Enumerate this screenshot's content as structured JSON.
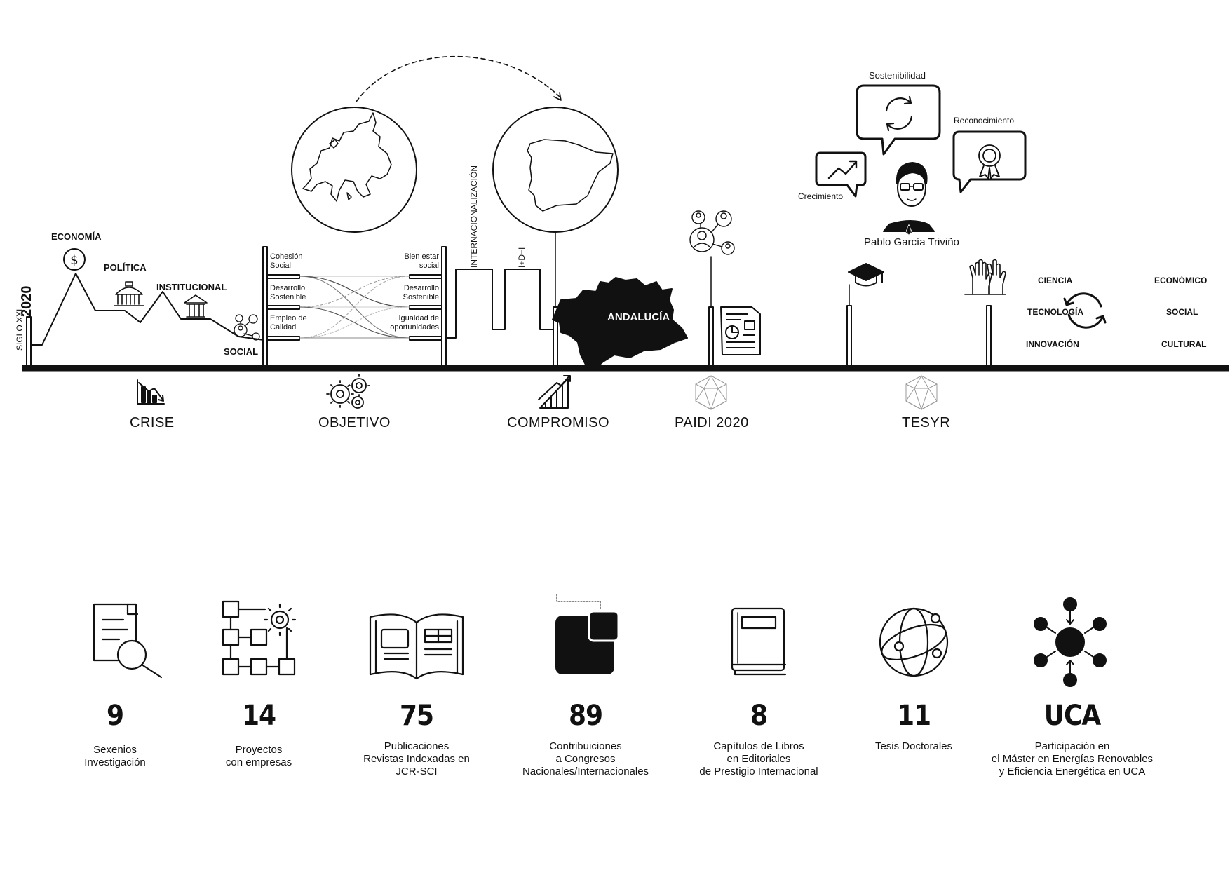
{
  "timeline": {
    "siglo": "SIGLO XXI",
    "year": "2020",
    "curve_labels": [
      "ECONOMÍA",
      "POLÍTICA",
      "INSTITUCIONAL",
      "SOCIAL"
    ],
    "objective_left": [
      "Cohesión\nSocial",
      "Desarrollo\nSostenible",
      "Empleo de\nCalidad"
    ],
    "objective_right": [
      "Bien estar\nsocial",
      "Desarrollo\nSostenible",
      "Igualdad de\noportunidades"
    ],
    "internacionalizacion": "INTERNACIONALIZACIÓN",
    "idi": "I+D+I",
    "andalucia": "ANDALUCÍA",
    "bottom_labels": [
      "CRISE",
      "OBJETIVO",
      "COMPROMISO",
      "PAIDI 2020",
      "TESYR"
    ],
    "person_name": "Pablo García Triviño",
    "bubbles": {
      "sostenibilidad": "Sostenibilidad",
      "reconocimiento": "Reconocimiento",
      "crecimiento": "Crecimiento"
    },
    "pillars_left": [
      "CIENCIA",
      "TECNOLOGÍA",
      "INNOVACIÓN"
    ],
    "pillars_right": [
      "ECONÓMICO",
      "SOCIAL",
      "CULTURAL"
    ]
  },
  "stats": [
    {
      "value": "9",
      "label": "Sexenios\nInvestigación",
      "icon": "document-search-icon"
    },
    {
      "value": "14",
      "label": "Proyectos\ncon empresas",
      "icon": "flowchart-gear-icon"
    },
    {
      "value": "75",
      "label": "Publicaciones\nRevistas Indexadas en\nJCR-SCI",
      "icon": "open-book-icon"
    },
    {
      "value": "89",
      "label": "Contribuiciones\na Congresos\nNacionales/Internacionales",
      "icon": "squares-icon"
    },
    {
      "value": "8",
      "label": "Capítulos de Libros\nen Editoriales\nde Prestigio Internacional",
      "icon": "book-icon"
    },
    {
      "value": "11",
      "label": "Tesis Doctorales",
      "icon": "globe-icon"
    },
    {
      "value": "UCA",
      "label": "Participación en\nel Máster en Energías Renovables\ny Eficiencia Energética en UCA",
      "icon": "network-icon"
    }
  ]
}
